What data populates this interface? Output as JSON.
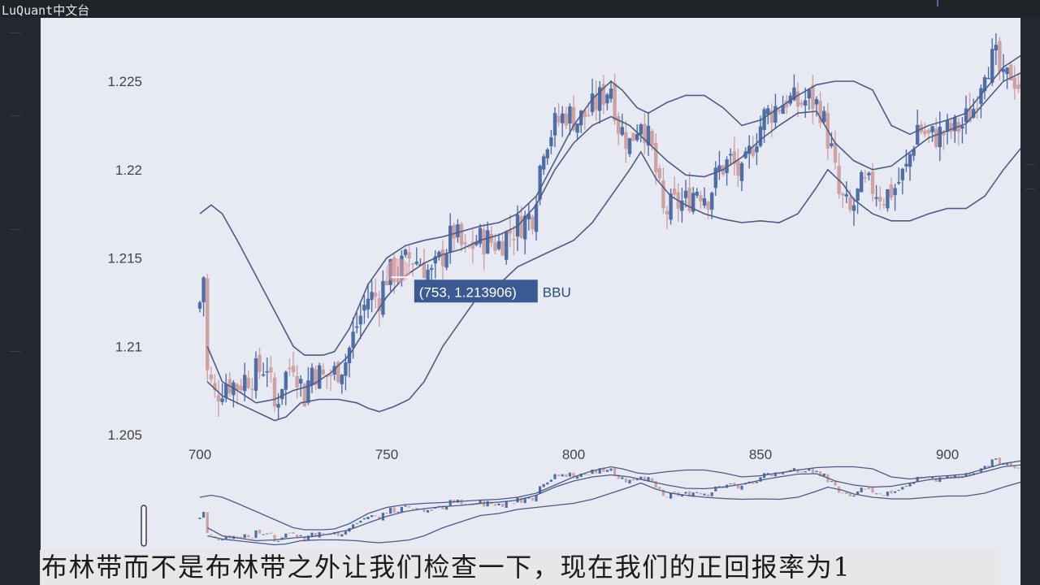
{
  "app": {
    "brand": "LuQuant中文台"
  },
  "chart_data": {
    "type": "candlestick",
    "xlim": [
      695,
      920
    ],
    "ylim": [
      1.2035,
      1.2275
    ],
    "x_ticks": [
      700,
      750,
      800,
      850,
      900
    ],
    "y_ticks": [
      1.205,
      1.21,
      1.215,
      1.22,
      1.225
    ],
    "tooltip": {
      "text": "(753, 1.213906)",
      "series": "BBU",
      "x": 753,
      "y": 1.213906
    },
    "up_color": "#4f6ea8",
    "down_color": "#cfa2a2",
    "band_color": "#4d5c85",
    "close_anchors": [
      [
        700,
        1.2125
      ],
      [
        701,
        1.214
      ],
      [
        702,
        1.2085
      ],
      [
        704,
        1.2072
      ],
      [
        707,
        1.208
      ],
      [
        710,
        1.2078
      ],
      [
        712,
        1.2082
      ],
      [
        715,
        1.2085
      ],
      [
        718,
        1.209
      ],
      [
        720,
        1.2065
      ],
      [
        722,
        1.208
      ],
      [
        725,
        1.2092
      ],
      [
        728,
        1.2072
      ],
      [
        730,
        1.2088
      ],
      [
        733,
        1.2082
      ],
      [
        736,
        1.2085
      ],
      [
        739,
        1.2092
      ],
      [
        742,
        1.2112
      ],
      [
        745,
        1.2128
      ],
      [
        748,
        1.2128
      ],
      [
        750,
        1.214
      ],
      [
        753,
        1.2143
      ],
      [
        756,
        1.215
      ],
      [
        759,
        1.2148
      ],
      [
        762,
        1.214
      ],
      [
        765,
        1.2152
      ],
      [
        768,
        1.2165
      ],
      [
        771,
        1.2152
      ],
      [
        774,
        1.216
      ],
      [
        777,
        1.216
      ],
      [
        780,
        1.2158
      ],
      [
        783,
        1.2165
      ],
      [
        786,
        1.217
      ],
      [
        789,
        1.2175
      ],
      [
        792,
        1.2215
      ],
      [
        795,
        1.2225
      ],
      [
        798,
        1.2232
      ],
      [
        801,
        1.2228
      ],
      [
        804,
        1.2232
      ],
      [
        807,
        1.224
      ],
      [
        810,
        1.2248
      ],
      [
        812,
        1.2225
      ],
      [
        815,
        1.2215
      ],
      [
        818,
        1.223
      ],
      [
        821,
        1.221
      ],
      [
        824,
        1.2175
      ],
      [
        827,
        1.218
      ],
      [
        830,
        1.2182
      ],
      [
        833,
        1.219
      ],
      [
        836,
        1.2185
      ],
      [
        839,
        1.22
      ],
      [
        842,
        1.2205
      ],
      [
        845,
        1.2195
      ],
      [
        848,
        1.2215
      ],
      [
        851,
        1.223
      ],
      [
        854,
        1.2235
      ],
      [
        857,
        1.224
      ],
      [
        860,
        1.2237
      ],
      [
        863,
        1.224
      ],
      [
        866,
        1.2235
      ],
      [
        869,
        1.221
      ],
      [
        871,
        1.2185
      ],
      [
        874,
        1.2175
      ],
      [
        877,
        1.219
      ],
      [
        880,
        1.219
      ],
      [
        883,
        1.2185
      ],
      [
        886,
        1.219
      ],
      [
        889,
        1.22
      ],
      [
        892,
        1.2225
      ],
      [
        895,
        1.2218
      ],
      [
        898,
        1.222
      ],
      [
        901,
        1.2222
      ],
      [
        904,
        1.2225
      ],
      [
        907,
        1.2235
      ],
      [
        910,
        1.226
      ],
      [
        913,
        1.2262
      ],
      [
        915,
        1.2248
      ],
      [
        917,
        1.2255
      ],
      [
        920,
        1.2245
      ]
    ],
    "bb_upper": [
      [
        700,
        1.2175
      ],
      [
        703,
        1.218
      ],
      [
        706,
        1.2175
      ],
      [
        710,
        1.216
      ],
      [
        715,
        1.214
      ],
      [
        720,
        1.212
      ],
      [
        725,
        1.21
      ],
      [
        728,
        1.2095
      ],
      [
        733,
        1.2095
      ],
      [
        736,
        1.2097
      ],
      [
        740,
        1.211
      ],
      [
        745,
        1.2135
      ],
      [
        750,
        1.215
      ],
      [
        755,
        1.2157
      ],
      [
        760,
        1.216
      ],
      [
        765,
        1.2162
      ],
      [
        770,
        1.2165
      ],
      [
        775,
        1.2168
      ],
      [
        780,
        1.217
      ],
      [
        785,
        1.2175
      ],
      [
        790,
        1.2185
      ],
      [
        795,
        1.2205
      ],
      [
        800,
        1.2225
      ],
      [
        805,
        1.224
      ],
      [
        810,
        1.225
      ],
      [
        813,
        1.2245
      ],
      [
        817,
        1.2235
      ],
      [
        820,
        1.2232
      ],
      [
        825,
        1.2238
      ],
      [
        830,
        1.2242
      ],
      [
        835,
        1.2242
      ],
      [
        840,
        1.2235
      ],
      [
        845,
        1.2225
      ],
      [
        850,
        1.2228
      ],
      [
        855,
        1.2235
      ],
      [
        860,
        1.2242
      ],
      [
        865,
        1.2248
      ],
      [
        870,
        1.225
      ],
      [
        875,
        1.225
      ],
      [
        880,
        1.2245
      ],
      [
        885,
        1.2225
      ],
      [
        890,
        1.222
      ],
      [
        895,
        1.2225
      ],
      [
        900,
        1.2228
      ],
      [
        905,
        1.2232
      ],
      [
        910,
        1.2245
      ],
      [
        915,
        1.2258
      ],
      [
        920,
        1.2265
      ]
    ],
    "bb_middle": [
      [
        702,
        1.21
      ],
      [
        706,
        1.208
      ],
      [
        710,
        1.2075
      ],
      [
        715,
        1.2068
      ],
      [
        720,
        1.207
      ],
      [
        725,
        1.2075
      ],
      [
        730,
        1.2078
      ],
      [
        735,
        1.2085
      ],
      [
        740,
        1.2095
      ],
      [
        745,
        1.2112
      ],
      [
        750,
        1.2128
      ],
      [
        755,
        1.214
      ],
      [
        760,
        1.2147
      ],
      [
        765,
        1.2152
      ],
      [
        770,
        1.2155
      ],
      [
        775,
        1.216
      ],
      [
        780,
        1.2163
      ],
      [
        785,
        1.2168
      ],
      [
        790,
        1.218
      ],
      [
        795,
        1.22
      ],
      [
        800,
        1.2215
      ],
      [
        805,
        1.2225
      ],
      [
        810,
        1.223
      ],
      [
        815,
        1.2225
      ],
      [
        820,
        1.2215
      ],
      [
        825,
        1.2205
      ],
      [
        830,
        1.2197
      ],
      [
        835,
        1.2196
      ],
      [
        840,
        1.22
      ],
      [
        845,
        1.2207
      ],
      [
        850,
        1.2217
      ],
      [
        855,
        1.2225
      ],
      [
        860,
        1.2232
      ],
      [
        865,
        1.2233
      ],
      [
        870,
        1.2215
      ],
      [
        875,
        1.2205
      ],
      [
        880,
        1.22
      ],
      [
        885,
        1.2202
      ],
      [
        890,
        1.221
      ],
      [
        895,
        1.2218
      ],
      [
        900,
        1.2222
      ],
      [
        905,
        1.2226
      ],
      [
        910,
        1.2238
      ],
      [
        915,
        1.225
      ],
      [
        920,
        1.2255
      ]
    ],
    "bb_lower": [
      [
        702,
        1.208
      ],
      [
        706,
        1.2072
      ],
      [
        710,
        1.2068
      ],
      [
        715,
        1.2063
      ],
      [
        720,
        1.2058
      ],
      [
        723,
        1.206
      ],
      [
        727,
        1.2068
      ],
      [
        732,
        1.207
      ],
      [
        737,
        1.207
      ],
      [
        742,
        1.2068
      ],
      [
        745,
        1.2065
      ],
      [
        748,
        1.2063
      ],
      [
        752,
        1.2066
      ],
      [
        756,
        1.207
      ],
      [
        760,
        1.208
      ],
      [
        765,
        1.21
      ],
      [
        770,
        1.2115
      ],
      [
        775,
        1.213
      ],
      [
        780,
        1.2135
      ],
      [
        785,
        1.2145
      ],
      [
        790,
        1.215
      ],
      [
        795,
        1.2155
      ],
      [
        800,
        1.216
      ],
      [
        805,
        1.217
      ],
      [
        810,
        1.2185
      ],
      [
        815,
        1.22
      ],
      [
        818,
        1.221
      ],
      [
        822,
        1.2195
      ],
      [
        826,
        1.2185
      ],
      [
        830,
        1.218
      ],
      [
        835,
        1.2175
      ],
      [
        840,
        1.2172
      ],
      [
        845,
        1.217
      ],
      [
        850,
        1.2171
      ],
      [
        855,
        1.217
      ],
      [
        860,
        1.2175
      ],
      [
        865,
        1.219
      ],
      [
        868,
        1.22
      ],
      [
        872,
        1.2192
      ],
      [
        875,
        1.2183
      ],
      [
        880,
        1.2175
      ],
      [
        885,
        1.2171
      ],
      [
        890,
        1.2171
      ],
      [
        895,
        1.2175
      ],
      [
        900,
        1.2178
      ],
      [
        905,
        1.2178
      ],
      [
        910,
        1.2185
      ],
      [
        915,
        1.22
      ],
      [
        920,
        1.2213
      ]
    ]
  },
  "sidebar_icon": "slider-handle-icon",
  "subtitle": "布林带而不是布林带之外让我们检查一下，现在我们的正回报率为1"
}
